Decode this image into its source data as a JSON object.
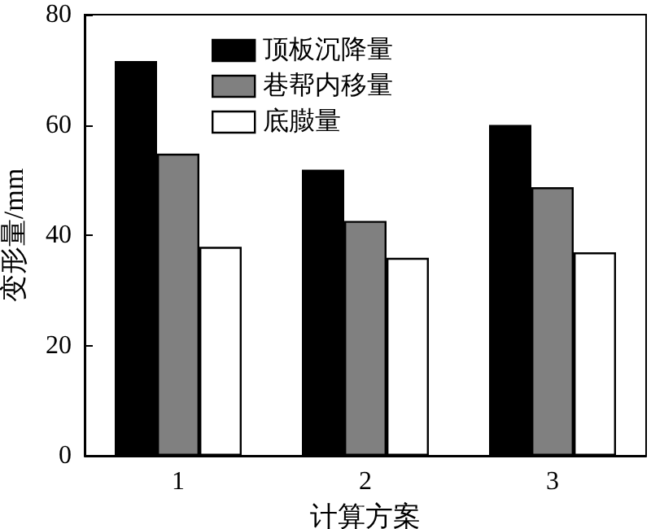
{
  "chart_data": {
    "type": "bar",
    "xlabel": "计算方案",
    "ylabel": "变形量/mm",
    "categories": [
      "1",
      "2",
      "3"
    ],
    "series": [
      {
        "name": "顶板沉降量",
        "color": "#000000",
        "values": [
          71.6,
          51.9,
          60.0
        ]
      },
      {
        "name": "巷帮内移量",
        "color": "#808080",
        "values": [
          54.8,
          42.6,
          48.7
        ]
      },
      {
        "name": "底臌量",
        "color": "#ffffff",
        "values": [
          37.9,
          35.9,
          36.9
        ]
      }
    ],
    "ylim": [
      0,
      80
    ],
    "yticks": [
      0,
      20,
      40,
      60,
      80
    ],
    "grid": false,
    "legend": "top left"
  }
}
